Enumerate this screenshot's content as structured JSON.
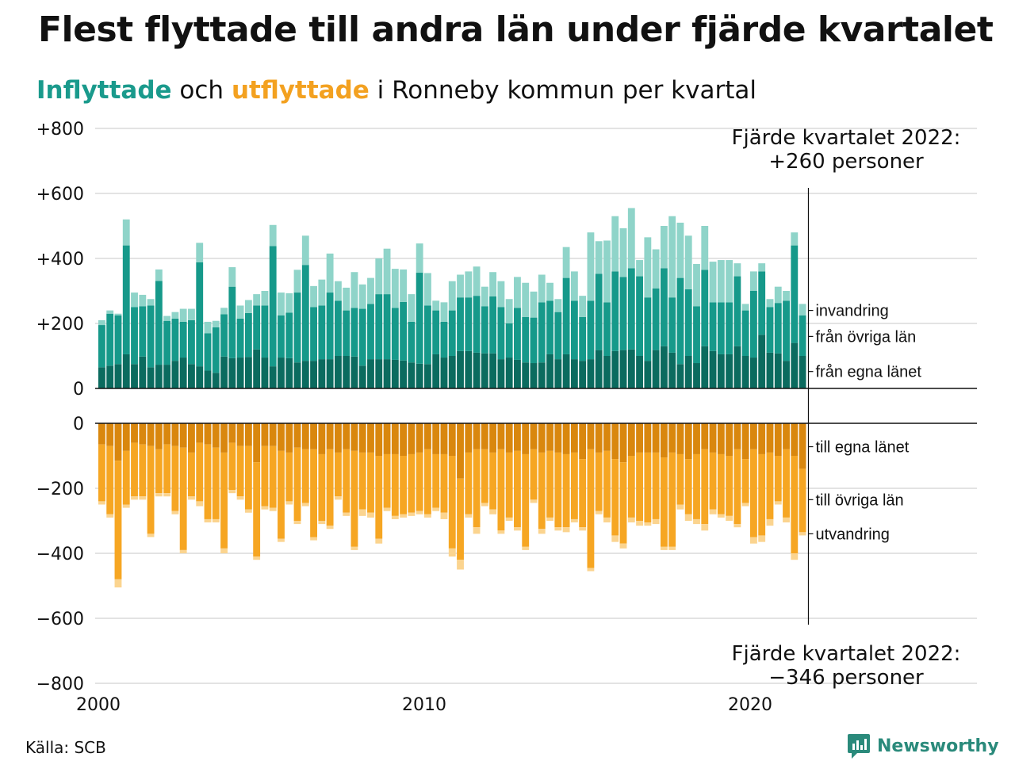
{
  "title": "Flest flyttade till andra län under fjärde kvartalet",
  "subtitle": {
    "inflow_word": "Inflyttade",
    "and_word": " och ",
    "outflow_word": "utflyttade",
    "rest": " i Ronneby kommun per kvartal"
  },
  "source": "Källa: SCB",
  "brand": "Newsworthy",
  "colors": {
    "in_own": "#0b6b5f",
    "in_other": "#16998a",
    "in_immig": "#8fd4c9",
    "out_own": "#d9870e",
    "out_other": "#f6a623",
    "out_emig": "#fbd48f",
    "grid": "#e3e3e3",
    "inflow_text": "#1a9a8c",
    "outflow_text": "#f3a120"
  },
  "chart_data": {
    "type": "bar",
    "stacked": true,
    "x_start": "2000 Q1",
    "x_end": "2022 Q4",
    "x_ticks": [
      "2000",
      "2010",
      "2020"
    ],
    "y_ticks_in": [
      "+800",
      "+600",
      "+400",
      "+200",
      "0"
    ],
    "y_ticks_in_values": [
      800,
      600,
      400,
      200,
      0
    ],
    "y_ticks_out": [
      "0",
      "−200",
      "−400",
      "−600",
      "−800"
    ],
    "y_ticks_out_values": [
      0,
      -200,
      -400,
      -600,
      -800
    ],
    "ylim_in": [
      0,
      800
    ],
    "ylim_out": [
      -800,
      0
    ],
    "legend_in": [
      "invandring",
      "från övriga län",
      "från egna länet"
    ],
    "legend_out": [
      "till egna länet",
      "till övriga län",
      "utvandring"
    ],
    "annotation_in": [
      "Fjärde kvartalet 2022:",
      "+260 personer"
    ],
    "annotation_out": [
      "Fjärde kvartalet 2022:",
      "−346 personer"
    ],
    "inflow": {
      "own": [
        65,
        70,
        75,
        105,
        75,
        98,
        65,
        73,
        73,
        85,
        95,
        75,
        68,
        55,
        48,
        98,
        93,
        95,
        97,
        120,
        95,
        68,
        95,
        93,
        80,
        85,
        85,
        90,
        90,
        100,
        100,
        98,
        70,
        90,
        90,
        90,
        88,
        86,
        80,
        76,
        75,
        105,
        95,
        100,
        115,
        115,
        110,
        108,
        108,
        90,
        95,
        88,
        80,
        78,
        80,
        105,
        90,
        105,
        90,
        85,
        90,
        118,
        100,
        115,
        118,
        120,
        100,
        85,
        118,
        130,
        110,
        75,
        100,
        78,
        130,
        115,
        105,
        105,
        130,
        100,
        95,
        165,
        110,
        108,
        85,
        140,
        100
      ],
      "other": [
        130,
        160,
        150,
        335,
        175,
        155,
        190,
        258,
        135,
        130,
        110,
        135,
        320,
        115,
        140,
        130,
        220,
        120,
        135,
        135,
        160,
        370,
        130,
        140,
        215,
        295,
        165,
        165,
        205,
        170,
        140,
        150,
        175,
        170,
        200,
        200,
        160,
        180,
        125,
        280,
        180,
        135,
        110,
        140,
        165,
        165,
        175,
        145,
        175,
        160,
        105,
        160,
        140,
        140,
        185,
        165,
        145,
        235,
        180,
        135,
        180,
        235,
        165,
        245,
        225,
        250,
        245,
        195,
        190,
        240,
        170,
        265,
        205,
        175,
        235,
        150,
        160,
        160,
        215,
        140,
        205,
        195,
        140,
        155,
        185,
        300,
        125
      ],
      "immig": [
        15,
        10,
        5,
        80,
        45,
        35,
        20,
        35,
        15,
        20,
        40,
        35,
        60,
        35,
        20,
        20,
        60,
        40,
        40,
        35,
        45,
        65,
        70,
        60,
        70,
        90,
        65,
        80,
        120,
        60,
        70,
        110,
        75,
        80,
        110,
        140,
        120,
        100,
        85,
        90,
        100,
        30,
        60,
        90,
        70,
        80,
        90,
        60,
        75,
        80,
        75,
        95,
        105,
        80,
        85,
        55,
        40,
        95,
        90,
        65,
        210,
        100,
        190,
        170,
        150,
        185,
        50,
        185,
        120,
        130,
        250,
        170,
        165,
        130,
        135,
        125,
        130,
        130,
        40,
        20,
        60,
        25,
        25,
        50,
        30,
        40,
        35
      ],
      "immig_alt": [
        17,
        10,
        5,
        80,
        45,
        35,
        20,
        35,
        15,
        20,
        40,
        35,
        60,
        35,
        20,
        20,
        60,
        40,
        40,
        35,
        45,
        65,
        70,
        60,
        70,
        90,
        65,
        80,
        120,
        60,
        70,
        110,
        75,
        80,
        110,
        140,
        120,
        100,
        85,
        90,
        100,
        30,
        60,
        90,
        70,
        80,
        90,
        60,
        75,
        80,
        75,
        95,
        105,
        80,
        85,
        55,
        40,
        95,
        90,
        65,
        210,
        100,
        190,
        170,
        150,
        185,
        50,
        185,
        120,
        130,
        250,
        170,
        165,
        130,
        135,
        125,
        130,
        130,
        40,
        20,
        60,
        25,
        25,
        50,
        30,
        40,
        35
      ]
    },
    "outflow": {
      "own": [
        65,
        70,
        115,
        85,
        60,
        65,
        70,
        80,
        65,
        70,
        75,
        90,
        60,
        65,
        75,
        90,
        60,
        70,
        70,
        120,
        70,
        70,
        85,
        90,
        75,
        80,
        80,
        95,
        80,
        90,
        80,
        85,
        90,
        90,
        100,
        95,
        95,
        100,
        95,
        90,
        80,
        95,
        95,
        100,
        170,
        90,
        80,
        80,
        90,
        80,
        90,
        85,
        95,
        80,
        90,
        85,
        90,
        95,
        90,
        110,
        80,
        90,
        85,
        110,
        120,
        100,
        90,
        90,
        90,
        105,
        90,
        95,
        110,
        95,
        80,
        90,
        95,
        100,
        80,
        110,
        80,
        95,
        90,
        100,
        80,
        100,
        140
      ],
      "other": [
        175,
        210,
        365,
        165,
        165,
        160,
        270,
        135,
        150,
        200,
        315,
        135,
        180,
        230,
        220,
        295,
        145,
        155,
        195,
        290,
        185,
        190,
        270,
        150,
        225,
        165,
        270,
        205,
        235,
        135,
        195,
        295,
        175,
        185,
        255,
        165,
        190,
        180,
        180,
        180,
        200,
        165,
        180,
        285,
        250,
        190,
        240,
        165,
        175,
        250,
        200,
        235,
        285,
        155,
        235,
        205,
        230,
        225,
        205,
        210,
        365,
        180,
        205,
        235,
        250,
        190,
        210,
        215,
        205,
        275,
        290,
        155,
        170,
        200,
        230,
        175,
        185,
        185,
        230,
        135,
        270,
        250,
        205,
        140,
        210,
        300,
        195
      ],
      "emig": [
        10,
        10,
        25,
        10,
        10,
        10,
        10,
        10,
        10,
        10,
        10,
        10,
        15,
        10,
        10,
        15,
        10,
        10,
        10,
        10,
        10,
        10,
        10,
        10,
        10,
        10,
        10,
        10,
        10,
        10,
        10,
        10,
        20,
        15,
        15,
        10,
        10,
        10,
        10,
        10,
        10,
        10,
        20,
        25,
        30,
        10,
        20,
        10,
        15,
        10,
        10,
        10,
        10,
        10,
        15,
        10,
        10,
        15,
        10,
        10,
        10,
        10,
        15,
        20,
        15,
        15,
        15,
        10,
        15,
        10,
        10,
        15,
        20,
        15,
        20,
        15,
        10,
        15,
        10,
        10,
        20,
        20,
        20,
        10,
        15,
        20,
        10
      ]
    }
  }
}
